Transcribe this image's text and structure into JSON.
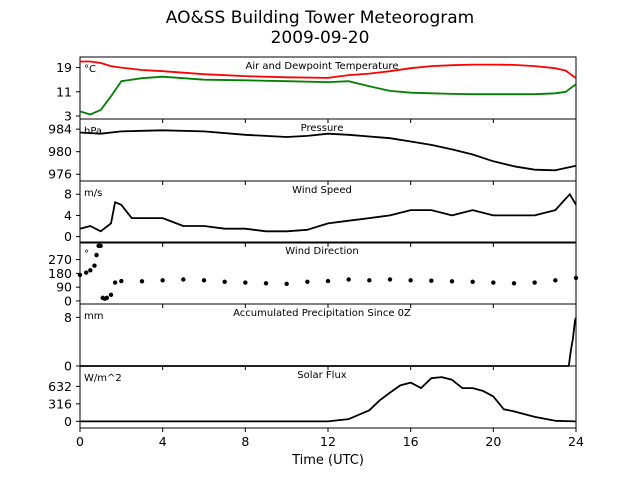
{
  "title": "AO&SS Building Tower Meteorogram",
  "subtitle": "2009-09-20",
  "xlabel": "Time (UTC)",
  "chart_data": [
    {
      "type": "line",
      "title": "Air and Dewpoint Temperature",
      "unit": "°C",
      "yticks": [
        3,
        11,
        19
      ],
      "ylim": [
        2,
        22.5
      ],
      "x": [
        0,
        0.5,
        1,
        1.5,
        2,
        3,
        4,
        5,
        6,
        8,
        10,
        12,
        13,
        14,
        15,
        16,
        17,
        18,
        19,
        20,
        21,
        22,
        23,
        23.5,
        24
      ],
      "series": [
        {
          "name": "Air",
          "color": "#ff0000",
          "values": [
            21,
            21,
            20.5,
            19.5,
            19,
            18.2,
            17.8,
            17.3,
            16.8,
            16.2,
            15.8,
            15.6,
            16.5,
            17,
            17.8,
            18.8,
            19.5,
            19.8,
            20,
            20,
            19.9,
            19.5,
            18.8,
            18,
            15.5
          ]
        },
        {
          "name": "Dewpoint",
          "color": "#008000",
          "values": [
            4.5,
            3.5,
            5,
            9.5,
            14.5,
            15.5,
            16,
            15.5,
            15,
            14.8,
            14.5,
            14.2,
            14.5,
            12.8,
            11.3,
            10.7,
            10.5,
            10.3,
            10.2,
            10.2,
            10.2,
            10.2,
            10.5,
            11,
            13.5
          ]
        }
      ],
      "grid": false
    },
    {
      "type": "line",
      "title": "Pressure",
      "unit": "hPa",
      "yticks": [
        976,
        980,
        984
      ],
      "ylim": [
        974.8,
        985.8
      ],
      "x": [
        0,
        1,
        2,
        3,
        4,
        6,
        8,
        10,
        11,
        12,
        13,
        14,
        15,
        16,
        17,
        18,
        19,
        20,
        21,
        22,
        23,
        24
      ],
      "series": [
        {
          "name": "Pressure",
          "color": "#000000",
          "values": [
            983.4,
            983.2,
            983.6,
            983.7,
            983.8,
            983.6,
            983,
            982.6,
            982.8,
            983.2,
            983,
            982.7,
            982.4,
            981.8,
            981.2,
            980.4,
            979.5,
            978.3,
            977.4,
            976.8,
            976.7,
            977.5
          ]
        }
      ],
      "grid": false
    },
    {
      "type": "line",
      "title": "Wind Speed",
      "unit": "m/s",
      "yticks": [
        0,
        4,
        8
      ],
      "ylim": [
        -1.2,
        10.5
      ],
      "x": [
        0,
        0.5,
        1,
        1.5,
        1.7,
        2,
        2.5,
        3,
        4,
        5,
        6,
        7,
        8,
        9,
        10,
        11,
        12,
        13,
        14,
        15,
        16,
        17,
        18,
        19,
        20,
        21,
        22,
        23,
        23.7,
        24
      ],
      "series": [
        {
          "name": "Wind Speed",
          "color": "#000000",
          "values": [
            1.5,
            2,
            1,
            2.5,
            6.5,
            6,
            3.5,
            3.5,
            3.5,
            2,
            2,
            1.5,
            1.5,
            1,
            1,
            1.3,
            2.5,
            3,
            3.5,
            4,
            5,
            5,
            4,
            5,
            4,
            4,
            4,
            5,
            8,
            6
          ]
        }
      ],
      "grid": false
    },
    {
      "type": "scatter",
      "title": "Wind Direction",
      "unit": "°",
      "yticks": [
        0,
        90,
        180,
        270
      ],
      "ylim": [
        -20,
        385
      ],
      "x": [
        0,
        0.3,
        0.5,
        0.7,
        0.8,
        0.9,
        1,
        1.1,
        1.2,
        1.3,
        1.5,
        1.7,
        2,
        3,
        4,
        5,
        6,
        7,
        8,
        9,
        10,
        11,
        12,
        13,
        14,
        15,
        16,
        17,
        18,
        19,
        20,
        21,
        22,
        23,
        24
      ],
      "series": [
        {
          "name": "Wind Direction",
          "color": "#000000",
          "values": [
            170,
            185,
            200,
            230,
            300,
            360,
            360,
            20,
            15,
            20,
            40,
            120,
            130,
            128,
            135,
            140,
            135,
            125,
            120,
            115,
            112,
            125,
            130,
            140,
            135,
            140,
            135,
            132,
            128,
            125,
            120,
            115,
            120,
            135,
            150
          ]
        }
      ],
      "grid": false
    },
    {
      "type": "line",
      "title": "Accumulated Precipitation Since 0Z",
      "unit": "mm",
      "yticks": [
        0,
        8
      ],
      "ylim": [
        0,
        10.2
      ],
      "x": [
        0,
        23.5,
        23.65,
        23.75,
        23.85,
        23.95,
        24
      ],
      "series": [
        {
          "name": "Precipitation",
          "color": "#000000",
          "values": [
            0,
            0,
            0,
            2.5,
            4.5,
            7.5,
            7.9
          ]
        }
      ],
      "grid": false
    },
    {
      "type": "line",
      "title": "Solar Flux",
      "unit": "W/m^2",
      "yticks": [
        0,
        316,
        632
      ],
      "ylim": [
        -120,
        1000
      ],
      "x": [
        0,
        12,
        13,
        13.5,
        14,
        14.5,
        15,
        15.5,
        16,
        16.5,
        17,
        17.5,
        18,
        18.5,
        19,
        19.5,
        20,
        20.5,
        21,
        22,
        23,
        24
      ],
      "series": [
        {
          "name": "Solar Flux",
          "color": "#000000",
          "values": [
            0,
            0,
            40,
            120,
            200,
            380,
            520,
            650,
            700,
            600,
            780,
            800,
            750,
            600,
            600,
            550,
            450,
            220,
            180,
            80,
            10,
            0
          ]
        }
      ],
      "grid": false
    }
  ],
  "x_axis": {
    "ticks": [
      0,
      4,
      8,
      12,
      16,
      20,
      24
    ],
    "xlim": [
      0,
      24
    ]
  }
}
